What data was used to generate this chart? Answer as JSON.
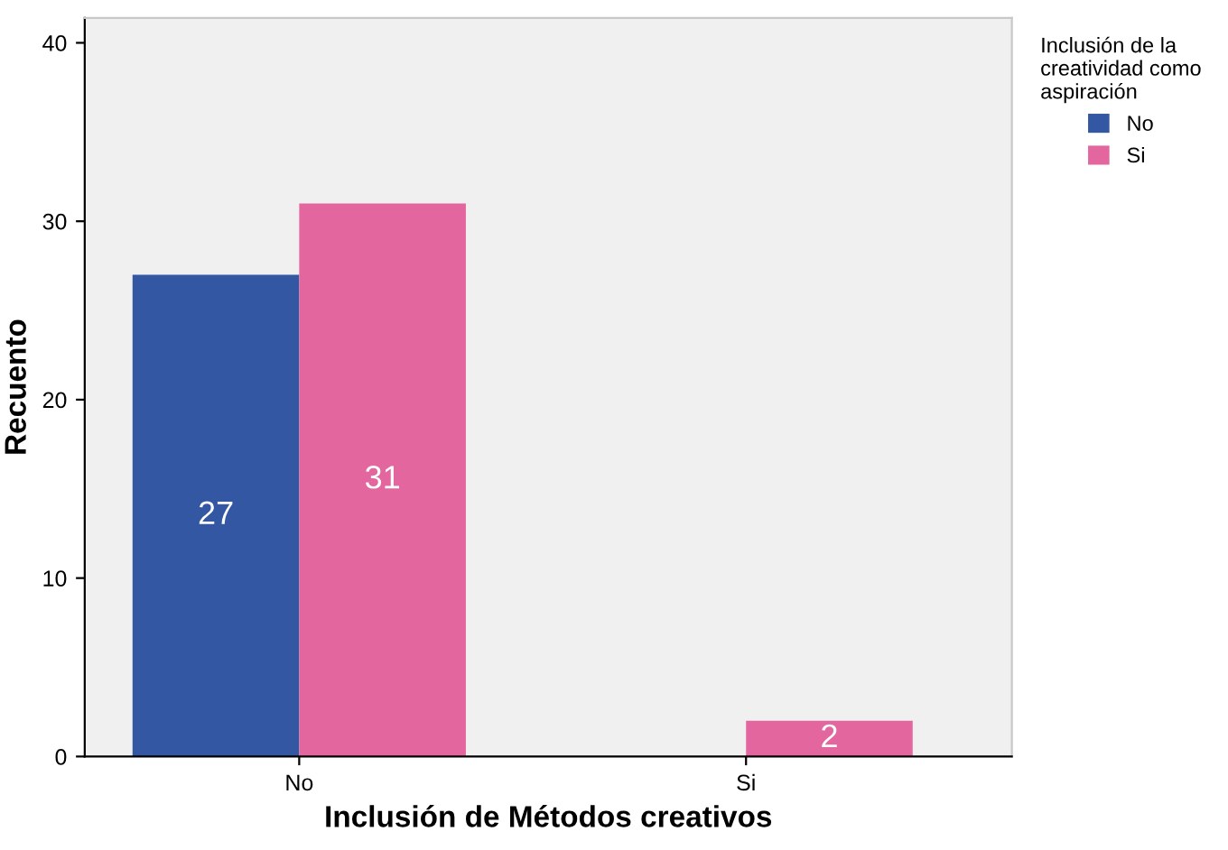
{
  "chart_data": {
    "type": "bar",
    "xlabel": "Inclusión de Métodos creativos",
    "ylabel": "Recuento",
    "legend_title": "Inclusión de la\ncreatividad como\naspiración",
    "categories": [
      "No",
      "Si"
    ],
    "series": [
      {
        "name": "No",
        "color": "#3457a3",
        "values": [
          27,
          null
        ]
      },
      {
        "name": "Si",
        "color": "#e3679e",
        "values": [
          31,
          2
        ]
      }
    ],
    "ylim": [
      0,
      41.4
    ],
    "yticks": [
      0,
      10,
      20,
      30,
      40
    ],
    "grid": false,
    "legend": "top right",
    "data_labels": true
  }
}
